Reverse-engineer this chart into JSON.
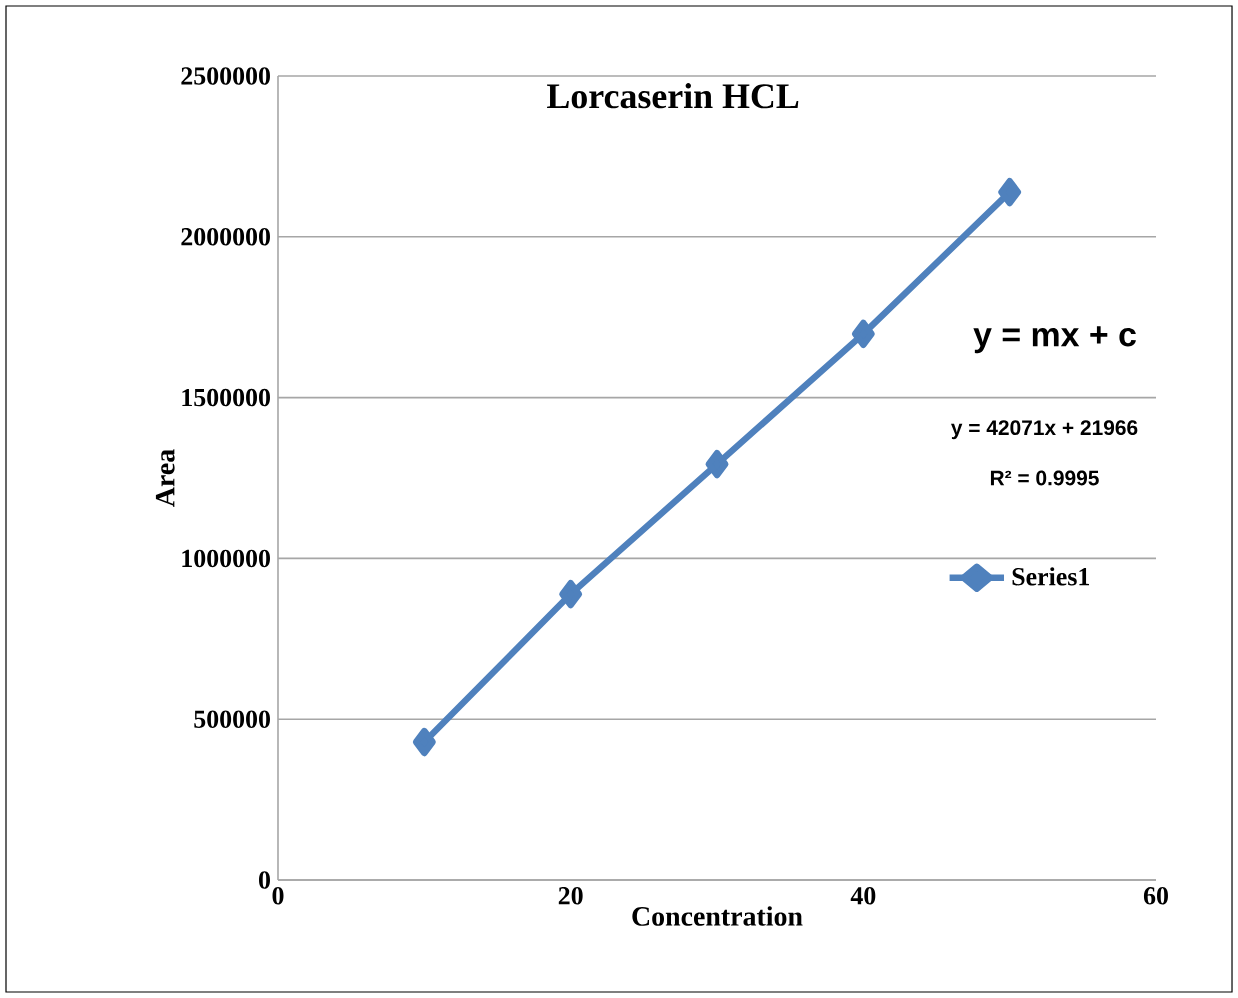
{
  "chart_data": {
    "type": "line",
    "title": "Lorcaserin HCL",
    "xlabel": "Concentration",
    "ylabel": "Area",
    "x": [
      10,
      20,
      30,
      40,
      50
    ],
    "series": [
      {
        "name": "Series1",
        "color": "#4f81bd",
        "values": [
          429000,
          889000,
          1293000,
          1698000,
          2139000
        ]
      }
    ],
    "xlim": [
      0,
      60
    ],
    "xticks": [
      0,
      20,
      40,
      60
    ],
    "ylim": [
      0,
      2500000
    ],
    "yticks": [
      0,
      500000,
      1000000,
      1500000,
      2000000,
      2500000
    ],
    "grid": "y",
    "legend": "right",
    "marker": "diamond",
    "line_style": "solid",
    "annotations": [
      "y = mx + c",
      "y = 42071x + 21966",
      "R² = 0.9995"
    ]
  }
}
